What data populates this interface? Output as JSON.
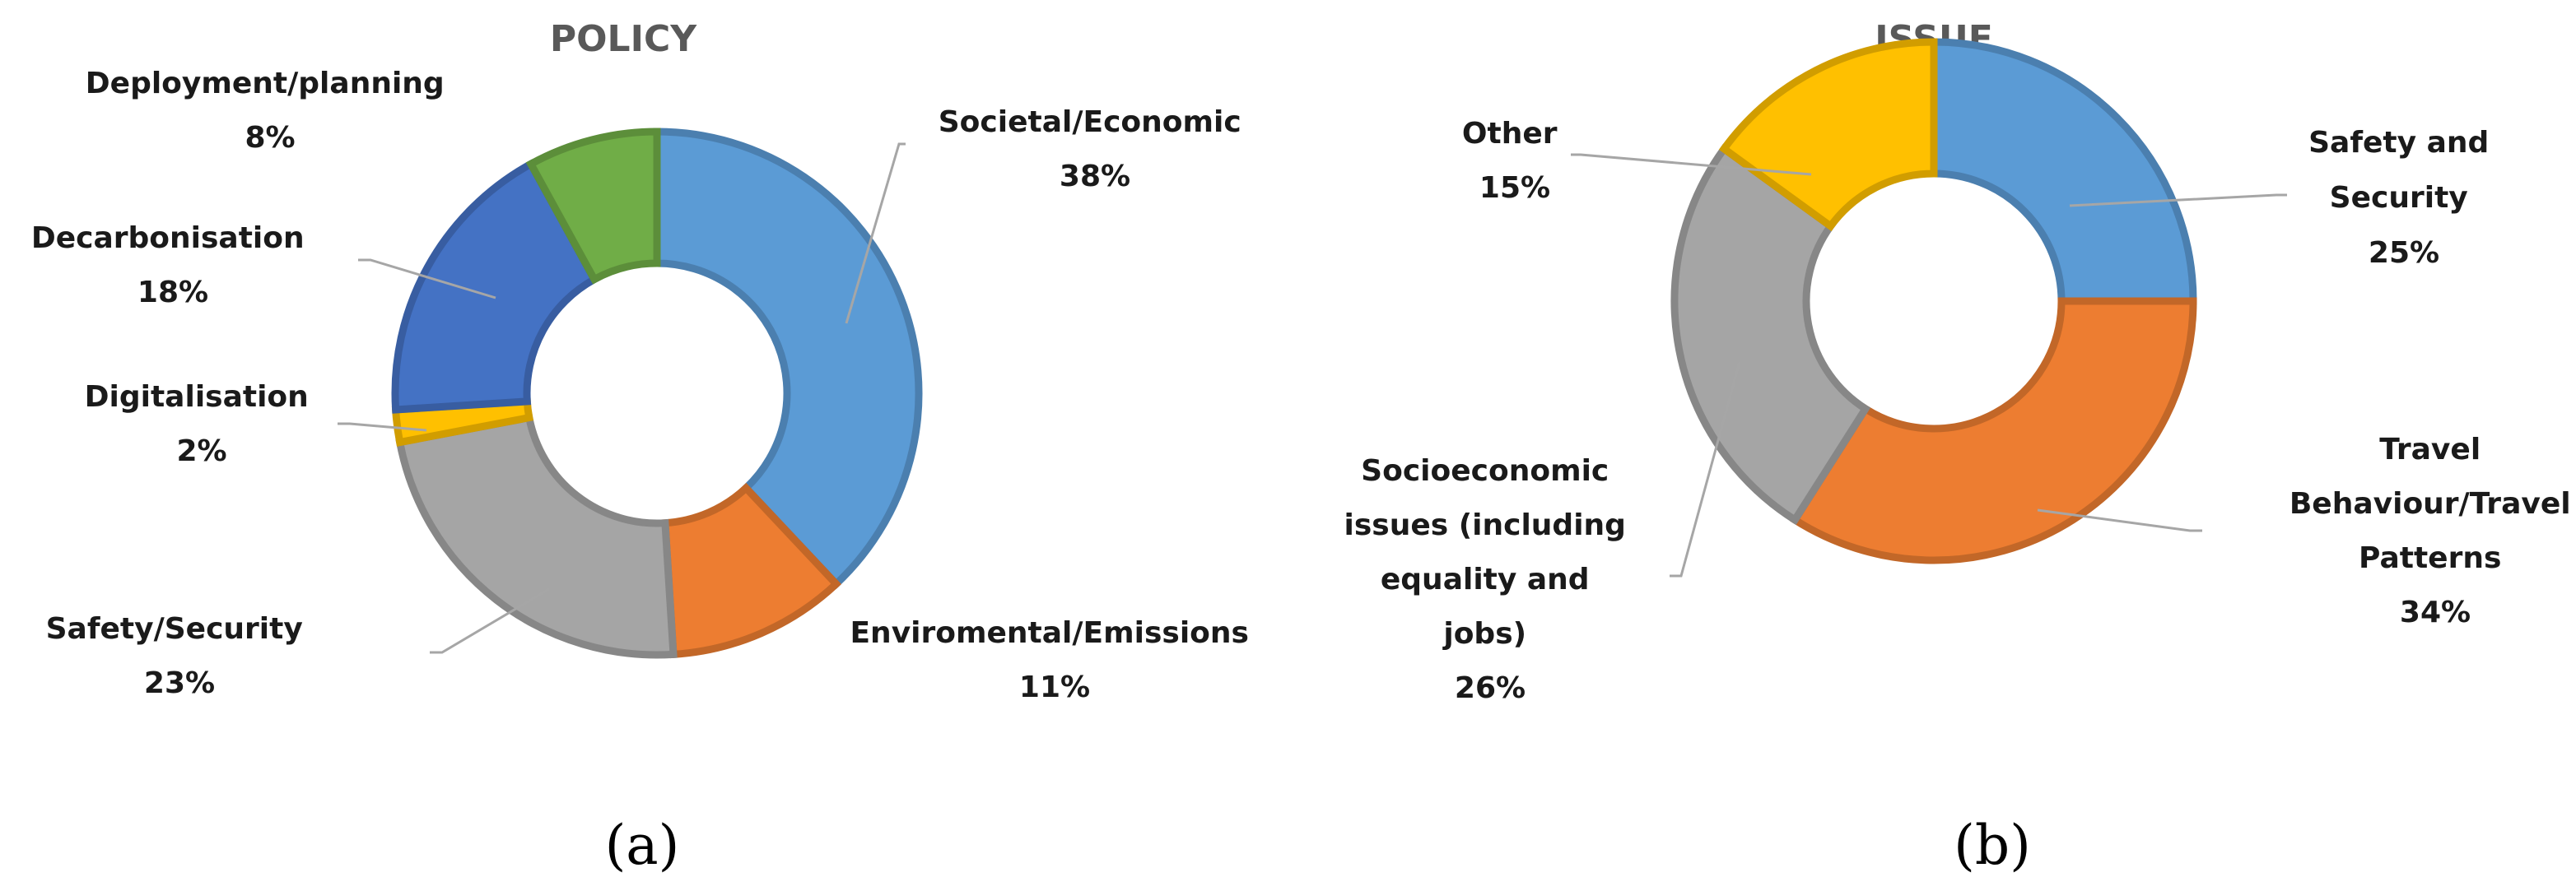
{
  "chart_data": [
    {
      "type": "donut",
      "title": "POLICY",
      "caption": "(a)",
      "unit": "%",
      "slices": [
        {
          "label": "Societal/Economic",
          "pct_label": "38%",
          "value": 38,
          "color": "#5B9BD5"
        },
        {
          "label": "Enviromental/Emissions",
          "pct_label": "11%",
          "value": 11,
          "color": "#ED7D31"
        },
        {
          "label": "Safety/Security",
          "pct_label": "23%",
          "value": 23,
          "color": "#A5A5A5"
        },
        {
          "label": "Digitalisation",
          "pct_label": "2%",
          "value": 2,
          "color": "#FFC000"
        },
        {
          "label": "Decarbonisation",
          "pct_label": "18%",
          "value": 18,
          "color": "#4472C4"
        },
        {
          "label": "Deployment/planning",
          "pct_label": "8%",
          "value": 8,
          "color": "#70AD47"
        }
      ]
    },
    {
      "type": "donut",
      "title": "ISSUE",
      "caption": "(b)",
      "unit": "%",
      "slices": [
        {
          "label": "Safety and Security",
          "pct_label": "25%",
          "value": 25,
          "color": "#5B9BD5"
        },
        {
          "label": "Travel Behaviour/Travel Patterns",
          "pct_label": "34%",
          "value": 34,
          "color": "#ED7D31"
        },
        {
          "label": "Socioeconomic issues (including equality and jobs)",
          "pct_label": "26%",
          "value": 26,
          "color": "#A5A5A5"
        },
        {
          "label": "Other",
          "pct_label": "15%",
          "value": 15,
          "color": "#FFC000"
        }
      ]
    }
  ]
}
